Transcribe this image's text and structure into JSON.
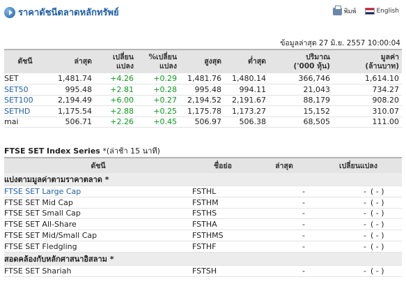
{
  "header": {
    "title": "ราคาดัชนีตลาดหลักทรัพย์",
    "print_label": "พิมพ์",
    "lang_label": "English"
  },
  "updated": "ข้อมูลล่าสุด 27 มิ.ย. 2557 10:00:04",
  "index_table": {
    "headers": {
      "index": "ดัชนี",
      "last": "ล่าสุด",
      "change_1": "เปลี่ยน",
      "change_2": "แปลง",
      "pct_change_1": "%เปลี่ยน",
      "pct_change_2": "แปลง",
      "high": "สูงสุด",
      "low": "ต่ำสุด",
      "volume_1": "ปริมาณ",
      "volume_2": "('000 หุ้น)",
      "value_1": "มูลค่า",
      "value_2": "(ล้านบาท)"
    },
    "rows": [
      {
        "name": "SET",
        "last": "1,481.74",
        "change": "+4.26",
        "pct": "+0.29",
        "high": "1,481.76",
        "low": "1,480.14",
        "volume": "366,746",
        "value": "1,614.10"
      },
      {
        "name": "SET50",
        "last": "995.48",
        "change": "+2.81",
        "pct": "+0.28",
        "high": "995.48",
        "low": "994.11",
        "volume": "21,043",
        "value": "734.27"
      },
      {
        "name": "SET100",
        "last": "2,194.49",
        "change": "+6.00",
        "pct": "+0.27",
        "high": "2,194.52",
        "low": "2,191.67",
        "volume": "88,179",
        "value": "908.20"
      },
      {
        "name": "SETHD",
        "last": "1,175.54",
        "change": "+2.88",
        "pct": "+0.25",
        "high": "1,175.78",
        "low": "1,173.27",
        "volume": "15,152",
        "value": "310.07"
      },
      {
        "name": "mai",
        "last": "506.71",
        "change": "+2.26",
        "pct": "+0.45",
        "high": "506.97",
        "low": "506.38",
        "volume": "68,505",
        "value": "111.00"
      }
    ]
  },
  "ftse": {
    "title": "FTSE SET Index Series",
    "note": "*(ล่าช้า 15 นาที)",
    "headers": {
      "index": "ดัชนี",
      "symbol": "ชื่อย่อ",
      "last": "ล่าสุด",
      "change": "เปลี่ยนแปลง"
    },
    "group1": "แบ่งตามมูลค่าตามราคาตลาด *",
    "group2": "สอดคล้องกับหลักศาสนาอิสลาม *",
    "rows": [
      {
        "name": "FTSE SET Large Cap",
        "symbol": "FSTHL",
        "last": "-",
        "change": "-",
        "pct": "( - )"
      },
      {
        "name": "FTSE SET Mid Cap",
        "symbol": "FSTHM",
        "last": "-",
        "change": "-",
        "pct": "( - )"
      },
      {
        "name": "FTSE SET Small Cap",
        "symbol": "FSTHS",
        "last": "-",
        "change": "-",
        "pct": "( - )"
      },
      {
        "name": "FTSE SET All-Share",
        "symbol": "FSTHA",
        "last": "-",
        "change": "-",
        "pct": "( - )"
      },
      {
        "name": "FTSE SET Mid/Small Cap",
        "symbol": "FSTHMS",
        "last": "-",
        "change": "-",
        "pct": "( - )"
      },
      {
        "name": "FTSE SET Fledgling",
        "symbol": "FSTHF",
        "last": "-",
        "change": "-",
        "pct": "( - )"
      },
      {
        "name": "FTSE SET Shariah",
        "symbol": "FSTSH",
        "last": "-",
        "change": "-",
        "pct": "( - )"
      }
    ]
  }
}
